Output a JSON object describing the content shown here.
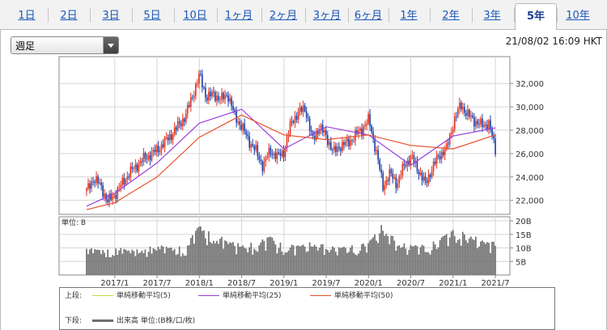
{
  "tabs": [
    {
      "label": "1日",
      "active": false
    },
    {
      "label": "2日",
      "active": false
    },
    {
      "label": "3日",
      "active": false
    },
    {
      "label": "5日",
      "active": false
    },
    {
      "label": "10日",
      "active": false
    },
    {
      "label": "1ヶ月",
      "active": false
    },
    {
      "label": "2ヶ月",
      "active": false
    },
    {
      "label": "3ヶ月",
      "active": false
    },
    {
      "label": "6ヶ月",
      "active": false
    },
    {
      "label": "1年",
      "active": false
    },
    {
      "label": "2年",
      "active": false
    },
    {
      "label": "3年",
      "active": false
    },
    {
      "label": "5年",
      "active": true
    },
    {
      "label": "10年",
      "active": false
    }
  ],
  "period_select": {
    "value": "週足"
  },
  "timestamp": "21/08/02 16:09 HKT",
  "colors": {
    "candle_up": "#e0301e",
    "candle_down": "#1a3ea8",
    "ma5": "#c8d24a",
    "ma25": "#9b3ee0",
    "ma50": "#e8502a",
    "volume": "#6e6e6e",
    "link": "#1a57b8"
  },
  "legend": {
    "upper_label": "上段:",
    "lower_label": "下段:",
    "ma5_label": "単純移動平均(5)",
    "ma25_label": "単純移動平均(25)",
    "ma50_label": "単純移動平均(50)",
    "volume_label": "出来高 単位:(B株/口/枚)"
  },
  "chart_data": [
    {
      "type": "line",
      "subtype": "candlestick_weekly",
      "title": "",
      "x_tick_labels": [
        "2017/1",
        "2017/7",
        "2018/1",
        "2018/7",
        "2019/1",
        "2019/7",
        "2020/1",
        "2020/7",
        "2021/1",
        "2021/7"
      ],
      "y_tick_labels": [
        "22,000",
        "24,000",
        "26,000",
        "28,000",
        "30,000",
        "32,000"
      ],
      "ylim": [
        20800,
        34300
      ],
      "y_axis_side": "right",
      "grid": true,
      "price_path": {
        "x": [
          "2016/9",
          "2016/10",
          "2016/11",
          "2016/12",
          "2017/1",
          "2017/3",
          "2017/5",
          "2017/7",
          "2017/9",
          "2017/11",
          "2018/1",
          "2018/2",
          "2018/3",
          "2018/4",
          "2018/5",
          "2018/6",
          "2018/7",
          "2018/8",
          "2018/9",
          "2018/10",
          "2018/11",
          "2018/12",
          "2019/1",
          "2019/2",
          "2019/3",
          "2019/4",
          "2019/5",
          "2019/6",
          "2019/7",
          "2019/8",
          "2019/9",
          "2019/10",
          "2019/11",
          "2019/12",
          "2020/1",
          "2020/2",
          "2020/3",
          "2020/4",
          "2020/5",
          "2020/6",
          "2020/7",
          "2020/8",
          "2020/9",
          "2020/10",
          "2020/11",
          "2020/12",
          "2021/1",
          "2021/2",
          "2021/3",
          "2021/4",
          "2021/5",
          "2021/6",
          "2021/7"
        ],
        "y": [
          22800,
          23900,
          23200,
          21900,
          22500,
          24300,
          25500,
          26300,
          27600,
          29200,
          32700,
          30800,
          31100,
          30600,
          31100,
          29200,
          28300,
          27100,
          26200,
          24900,
          26300,
          25700,
          26200,
          28700,
          29500,
          29900,
          27100,
          28300,
          27400,
          26100,
          26700,
          26900,
          27500,
          28100,
          28900,
          26300,
          23200,
          24300,
          23400,
          25000,
          25700,
          24600,
          23400,
          24800,
          25900,
          26400,
          28700,
          30200,
          29300,
          28800,
          28400,
          28600,
          26100
        ]
      },
      "series": [
        {
          "name": "単純移動平均(25)",
          "x": [
            "2016/9",
            "2017/1",
            "2017/7",
            "2018/1",
            "2018/7",
            "2019/1",
            "2019/7",
            "2020/1",
            "2020/7",
            "2021/1",
            "2021/7"
          ],
          "y": [
            21500,
            22600,
            25200,
            28600,
            29800,
            26400,
            28300,
            27600,
            25000,
            27500,
            28200
          ]
        },
        {
          "name": "単純移動平均(50)",
          "x": [
            "2016/9",
            "2017/1",
            "2017/7",
            "2018/1",
            "2018/7",
            "2019/1",
            "2019/7",
            "2020/1",
            "2020/7",
            "2021/1",
            "2021/7"
          ],
          "y": [
            21200,
            21800,
            24000,
            27400,
            29300,
            27600,
            27200,
            27600,
            26700,
            26400,
            27600
          ]
        }
      ]
    },
    {
      "type": "bar",
      "title": "",
      "ylabel": "単位: B",
      "y_tick_labels": [
        "5B",
        "10B",
        "15B",
        "20B"
      ],
      "ylim": [
        0,
        21.5
      ],
      "series": [
        {
          "name": "出来高",
          "x": [
            "2016/9",
            "2016/11",
            "2017/1",
            "2017/3",
            "2017/5",
            "2017/7",
            "2017/9",
            "2017/11",
            "2018/1",
            "2018/3",
            "2018/5",
            "2018/7",
            "2018/9",
            "2018/11",
            "2019/1",
            "2019/3",
            "2019/5",
            "2019/7",
            "2019/9",
            "2019/11",
            "2020/1",
            "2020/3",
            "2020/5",
            "2020/7",
            "2020/9",
            "2020/11",
            "2021/1",
            "2021/3",
            "2021/5",
            "2021/7"
          ],
          "values": [
            10,
            9,
            10.5,
            9,
            10,
            11,
            10,
            11,
            18,
            15,
            13,
            11,
            12,
            14,
            11,
            11,
            12,
            11,
            10,
            11,
            12,
            19,
            12,
            11,
            11,
            13,
            17,
            15,
            13,
            12
          ]
        }
      ]
    }
  ]
}
